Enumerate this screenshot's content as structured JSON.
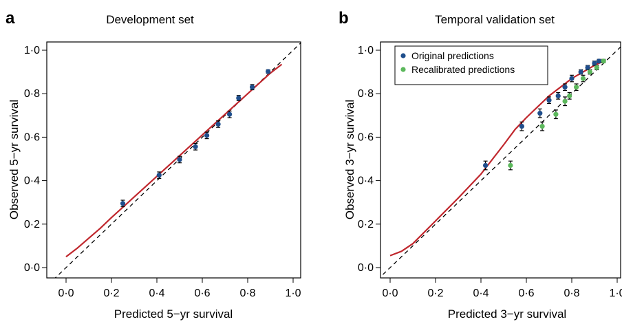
{
  "chart_data": [
    {
      "panel_label": "a",
      "type": "scatter",
      "title": "Development set",
      "xlabel": "Predicted 5−yr survival",
      "ylabel": "Observed 5−yr survival",
      "xlim": [
        0,
        1
      ],
      "ylim": [
        0,
        1
      ],
      "xticks": [
        0.0,
        0.2,
        0.4,
        0.6,
        0.8,
        1.0
      ],
      "yticks": [
        0.0,
        0.2,
        0.4,
        0.6,
        0.8,
        1.0
      ],
      "xtick_labels": [
        "0·0",
        "0·2",
        "0·4",
        "0·6",
        "0·8",
        "1·0"
      ],
      "ytick_labels": [
        "0·0",
        "0·2",
        "0·4",
        "0·6",
        "0·8",
        "1·0"
      ],
      "grid": false,
      "legend": null,
      "reference_line": {
        "style": "dashed",
        "color": "#000000",
        "from": [
          0,
          0
        ],
        "to": [
          1,
          1
        ]
      },
      "smooth_curve": {
        "color": "#c0272d",
        "x": [
          0.0,
          0.05,
          0.1,
          0.15,
          0.2,
          0.3,
          0.4,
          0.5,
          0.6,
          0.7,
          0.8,
          0.9,
          0.95
        ],
        "y": [
          0.05,
          0.09,
          0.135,
          0.18,
          0.23,
          0.325,
          0.42,
          0.515,
          0.61,
          0.705,
          0.8,
          0.895,
          0.935
        ]
      },
      "series": [
        {
          "name": "",
          "color": "#1f4e8c",
          "x": [
            0.25,
            0.41,
            0.5,
            0.57,
            0.62,
            0.67,
            0.72,
            0.76,
            0.82,
            0.89
          ],
          "y": [
            0.295,
            0.425,
            0.497,
            0.556,
            0.608,
            0.66,
            0.705,
            0.78,
            0.83,
            0.902
          ],
          "err": [
            0.015,
            0.015,
            0.015,
            0.015,
            0.015,
            0.015,
            0.015,
            0.012,
            0.012,
            0.008
          ]
        }
      ]
    },
    {
      "panel_label": "b",
      "type": "scatter",
      "title": "Temporal validation set",
      "xlabel": "Predicted 3−yr survival",
      "ylabel": "Observed 3−yr survival",
      "xlim": [
        0,
        1
      ],
      "ylim": [
        0,
        1
      ],
      "xticks": [
        0.0,
        0.2,
        0.4,
        0.6,
        0.8,
        1.0
      ],
      "yticks": [
        0.0,
        0.2,
        0.4,
        0.6,
        0.8,
        1.0
      ],
      "xtick_labels": [
        "0·0",
        "0·2",
        "0·4",
        "0·6",
        "0·8",
        "1·0"
      ],
      "ytick_labels": [
        "0·0",
        "0·2",
        "0·4",
        "0·6",
        "0·8",
        "1·0"
      ],
      "grid": false,
      "legend": "top-left",
      "reference_line": {
        "style": "dashed",
        "color": "#000000",
        "from": [
          0,
          0
        ],
        "to": [
          1,
          1
        ]
      },
      "smooth_curve": {
        "color": "#c0272d",
        "x": [
          0.0,
          0.05,
          0.1,
          0.2,
          0.3,
          0.4,
          0.5,
          0.55,
          0.6,
          0.65,
          0.7,
          0.75,
          0.8,
          0.85,
          0.9,
          0.95
        ],
        "y": [
          0.055,
          0.075,
          0.11,
          0.215,
          0.32,
          0.43,
          0.565,
          0.635,
          0.69,
          0.74,
          0.79,
          0.83,
          0.87,
          0.9,
          0.93,
          0.955
        ]
      },
      "series": [
        {
          "name": "Original predictions",
          "color": "#1f4e8c",
          "x": [
            0.42,
            0.58,
            0.66,
            0.7,
            0.74,
            0.77,
            0.8,
            0.84,
            0.87,
            0.9,
            0.92
          ],
          "y": [
            0.47,
            0.65,
            0.71,
            0.77,
            0.79,
            0.83,
            0.87,
            0.9,
            0.92,
            0.94,
            0.95
          ],
          "err": [
            0.02,
            0.02,
            0.02,
            0.015,
            0.015,
            0.015,
            0.015,
            0.01,
            0.01,
            0.01,
            0.008
          ]
        },
        {
          "name": "Recalibrated predictions",
          "color": "#5cb85c",
          "x": [
            0.53,
            0.67,
            0.73,
            0.77,
            0.79,
            0.82,
            0.85,
            0.88,
            0.91,
            0.94
          ],
          "y": [
            0.47,
            0.65,
            0.705,
            0.765,
            0.79,
            0.83,
            0.87,
            0.9,
            0.92,
            0.95
          ],
          "err": [
            0.02,
            0.02,
            0.02,
            0.02,
            0.015,
            0.015,
            0.015,
            0.01,
            0.01,
            0.008
          ]
        }
      ]
    }
  ]
}
